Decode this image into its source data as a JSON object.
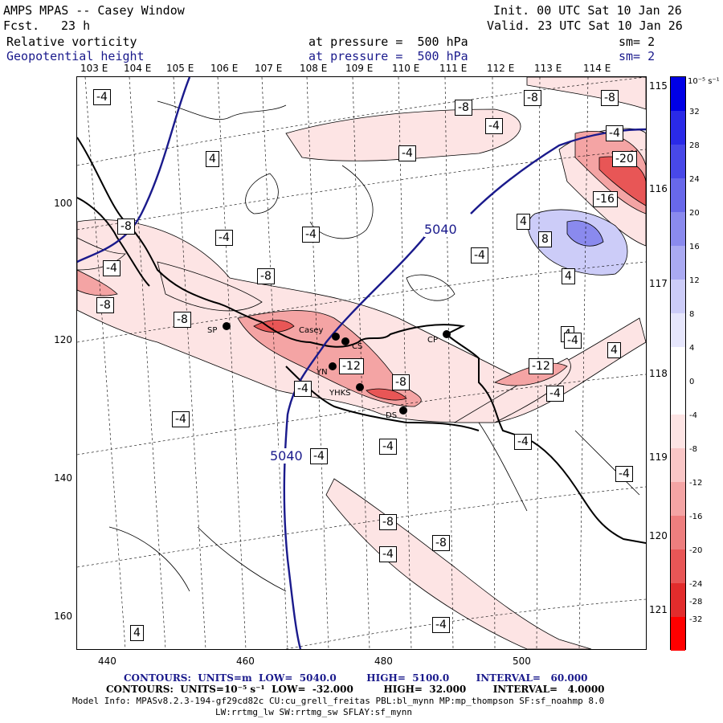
{
  "header": {
    "title": "AMPS MPAS -- Casey Window",
    "fcst_label": "Fcst.",
    "fcst_value": "23 h",
    "init": "Init. 00 UTC Sat 10 Jan 26",
    "valid": "Valid. 23 UTC Sat 10 Jan 26",
    "field1": "Relative vorticity",
    "field1_level": "at pressure =  500 hPa",
    "field1_sm": "sm= 2",
    "field2": "Geopotential height",
    "field2_level": "at pressure =  500 hPa",
    "field2_sm": "sm= 2"
  },
  "axes": {
    "lon_labels": [
      "103 E",
      "104 E",
      "105 E",
      "106 E",
      "107 E",
      "108 E",
      "109 E",
      "110 E",
      "111 E",
      "112 E",
      "113 E",
      "114 E",
      "115 E"
    ],
    "lat_labels": [
      "116 E",
      "117 E",
      "118 E",
      "119 E",
      "120 E",
      "121 E"
    ],
    "y_ticks": [
      "100",
      "120",
      "140",
      "160"
    ],
    "x_ticks": [
      "440",
      "460",
      "480",
      "500"
    ]
  },
  "colorbar": {
    "unit": "10⁻⁵ s⁻¹",
    "labels": [
      "32",
      "28",
      "24",
      "20",
      "16",
      "12",
      "8",
      "4",
      "0",
      "-4",
      "-8",
      "-12",
      "-16",
      "-20",
      "-24",
      "-28",
      "-32"
    ],
    "colors": [
      "#0000e6",
      "#2a2ae8",
      "#4848e8",
      "#6868ea",
      "#8a8aee",
      "#aaaaf2",
      "#ccccf8",
      "#e6e6fc",
      "#ffffff",
      "#ffffff",
      "#fde4e4",
      "#f9c6c6",
      "#f4a4a4",
      "#ee7e7e",
      "#e85656",
      "#e22c2c",
      "#ff0000"
    ]
  },
  "map_labels": {
    "contour_boxes": [
      "-4",
      "4",
      "4",
      "4",
      "-4",
      "-8",
      "-8",
      "-8",
      "-4",
      "-4",
      "-20",
      "-16",
      "-8",
      "-4",
      "-4",
      "-8",
      "-4",
      "-4",
      "-8",
      "-4",
      "8",
      "4",
      "4",
      "4",
      "-8",
      "4",
      "-4",
      "4",
      "-12",
      "-12",
      "-4",
      "-8",
      "-4",
      "-4",
      "-4",
      "-4",
      "-4",
      "-8",
      "-8",
      "-4",
      "-4",
      "4",
      "-4"
    ],
    "height_label_1": "5040",
    "height_label_2": "5040",
    "stations": [
      "SP",
      "Casey",
      "CS",
      "YN",
      "YHKS",
      "DS",
      "CP"
    ]
  },
  "footer": {
    "contours1": "CONTOURS:  UNITS=m  LOW=  5040.0         HIGH=  5100.0        INTERVAL=   60.000",
    "contours2": "CONTOURS:  UNITS=10⁻⁵ s⁻¹  LOW=  -32.000         HIGH=  32.000        INTERVAL=   4.0000",
    "model_info": "Model Info: MPASv8.2.3-194-gf29cd82c CU:cu_grell_freitas PBL:bl_mynn MP:mp_thompson SF:sf_noahmp 8.0",
    "model_info2": "LW:rrtmg_lw SW:rrtmg_sw SFLAY:sf_mynn"
  }
}
